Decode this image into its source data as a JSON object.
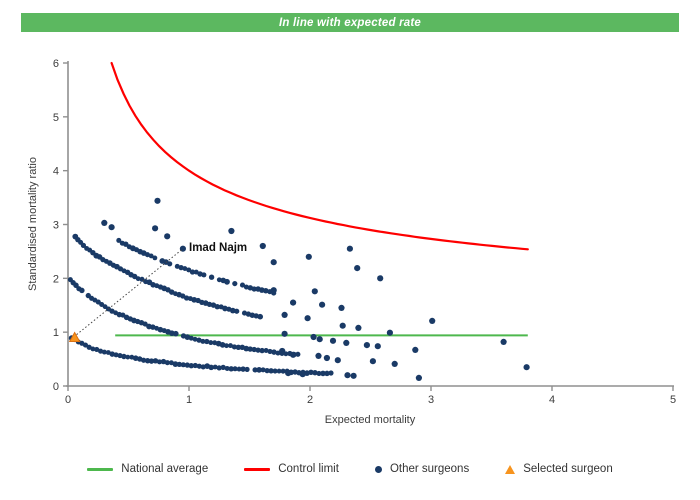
{
  "title_banner": {
    "text": "In line with expected rate",
    "bg_color": "#5cb860",
    "text_color": "#ffffff"
  },
  "chart_data": {
    "type": "scatter",
    "xlabel": "Expected mortality",
    "ylabel": "Standardised mortality ratio",
    "xlim": [
      0,
      5
    ],
    "ylim": [
      0,
      6
    ],
    "x_ticks": [
      "0",
      "1",
      "2",
      "3",
      "4",
      "5"
    ],
    "y_ticks": [
      "0",
      "1",
      "2",
      "3",
      "4",
      "5",
      "6"
    ],
    "grid": false,
    "axis_color": "#8f8f8f",
    "tick_label_color": "#3d3d3d",
    "national_average": {
      "y": 0.94,
      "x_start": 0.39,
      "x_end": 3.8,
      "color": "#4db84d"
    },
    "control_limit": {
      "formula": "y = 1 + 3/sqrt(x)",
      "x_start": 0.36,
      "x_end": 3.8,
      "color": "#fe0000"
    },
    "selected_surgeon": {
      "label": "Imad Najm",
      "x": 0.055,
      "y": 0.9,
      "color": "#F7941E",
      "edge_color": "#DB7011",
      "callout_end": [
        0.95,
        2.55
      ]
    },
    "other_surgeons": {
      "color": "#1a3a66",
      "bands": [
        {
          "points": [
            [
              0.42,
              2.7
            ],
            [
              0.55,
              2.54
            ],
            [
              0.7,
              2.4
            ],
            [
              0.85,
              2.26
            ],
            [
              1.0,
              2.15
            ],
            [
              1.15,
              2.04
            ],
            [
              1.3,
              1.95
            ],
            [
              1.45,
              1.86
            ],
            [
              1.6,
              1.78
            ],
            [
              1.72,
              1.72
            ]
          ]
        },
        {
          "points": [
            [
              0.06,
              2.77
            ],
            [
              0.12,
              2.62
            ],
            [
              0.2,
              2.48
            ],
            [
              0.3,
              2.33
            ],
            [
              0.45,
              2.15
            ],
            [
              0.58,
              2.0
            ],
            [
              0.78,
              1.82
            ],
            [
              0.97,
              1.65
            ],
            [
              1.16,
              1.52
            ],
            [
              1.35,
              1.41
            ],
            [
              1.5,
              1.33
            ],
            [
              1.62,
              1.28
            ]
          ]
        },
        {
          "points": [
            [
              0.02,
              1.97
            ],
            [
              0.08,
              1.83
            ],
            [
              0.15,
              1.7
            ],
            [
              0.25,
              1.55
            ],
            [
              0.36,
              1.4
            ],
            [
              0.5,
              1.26
            ],
            [
              0.65,
              1.13
            ],
            [
              0.8,
              1.02
            ],
            [
              0.95,
              0.93
            ],
            [
              1.13,
              0.83
            ],
            [
              1.3,
              0.76
            ],
            [
              1.5,
              0.69
            ],
            [
              1.7,
              0.63
            ],
            [
              1.9,
              0.58
            ]
          ]
        },
        {
          "points": [
            [
              0.03,
              0.9
            ],
            [
              0.1,
              0.8
            ],
            [
              0.2,
              0.7
            ],
            [
              0.32,
              0.62
            ],
            [
              0.46,
              0.55
            ],
            [
              0.62,
              0.49
            ],
            [
              0.8,
              0.44
            ],
            [
              1.0,
              0.39
            ],
            [
              1.2,
              0.35
            ],
            [
              1.45,
              0.31
            ],
            [
              1.7,
              0.28
            ],
            [
              1.95,
              0.25
            ],
            [
              2.2,
              0.23
            ]
          ]
        }
      ],
      "scatter": [
        [
          0.3,
          3.03
        ],
        [
          0.36,
          2.95
        ],
        [
          0.74,
          3.44
        ],
        [
          0.72,
          2.93
        ],
        [
          0.82,
          2.78
        ],
        [
          1.35,
          2.88
        ],
        [
          1.61,
          2.6
        ],
        [
          0.95,
          2.55
        ],
        [
          1.7,
          2.3
        ],
        [
          1.99,
          2.4
        ],
        [
          2.33,
          2.55
        ],
        [
          2.39,
          2.19
        ],
        [
          2.58,
          2.0
        ],
        [
          1.7,
          1.78
        ],
        [
          1.86,
          1.55
        ],
        [
          2.04,
          1.76
        ],
        [
          2.1,
          1.51
        ],
        [
          2.26,
          1.45
        ],
        [
          1.79,
          1.32
        ],
        [
          1.98,
          1.26
        ],
        [
          2.27,
          1.12
        ],
        [
          2.4,
          1.08
        ],
        [
          2.66,
          0.99
        ],
        [
          3.01,
          1.21
        ],
        [
          1.79,
          0.97
        ],
        [
          2.03,
          0.91
        ],
        [
          2.08,
          0.87
        ],
        [
          2.19,
          0.84
        ],
        [
          2.3,
          0.8
        ],
        [
          2.47,
          0.76
        ],
        [
          2.56,
          0.74
        ],
        [
          1.77,
          0.65
        ],
        [
          1.86,
          0.58
        ],
        [
          2.07,
          0.56
        ],
        [
          2.14,
          0.52
        ],
        [
          2.23,
          0.48
        ],
        [
          2.52,
          0.46
        ],
        [
          2.7,
          0.41
        ],
        [
          2.87,
          0.67
        ],
        [
          1.82,
          0.24
        ],
        [
          1.94,
          0.22
        ],
        [
          2.31,
          0.2
        ],
        [
          2.36,
          0.19
        ],
        [
          2.9,
          0.15
        ],
        [
          3.6,
          0.82
        ],
        [
          3.79,
          0.35
        ]
      ]
    }
  },
  "legend": {
    "items": [
      {
        "label": "National average",
        "swatch": "line",
        "color": "#4db84d"
      },
      {
        "label": "Control limit",
        "swatch": "line",
        "color": "#fe0000"
      },
      {
        "label": "Other surgeons",
        "swatch": "dot",
        "color": "#1a3a66"
      },
      {
        "label": "Selected surgeon",
        "swatch": "triangle",
        "color": "#F7941E"
      }
    ]
  }
}
